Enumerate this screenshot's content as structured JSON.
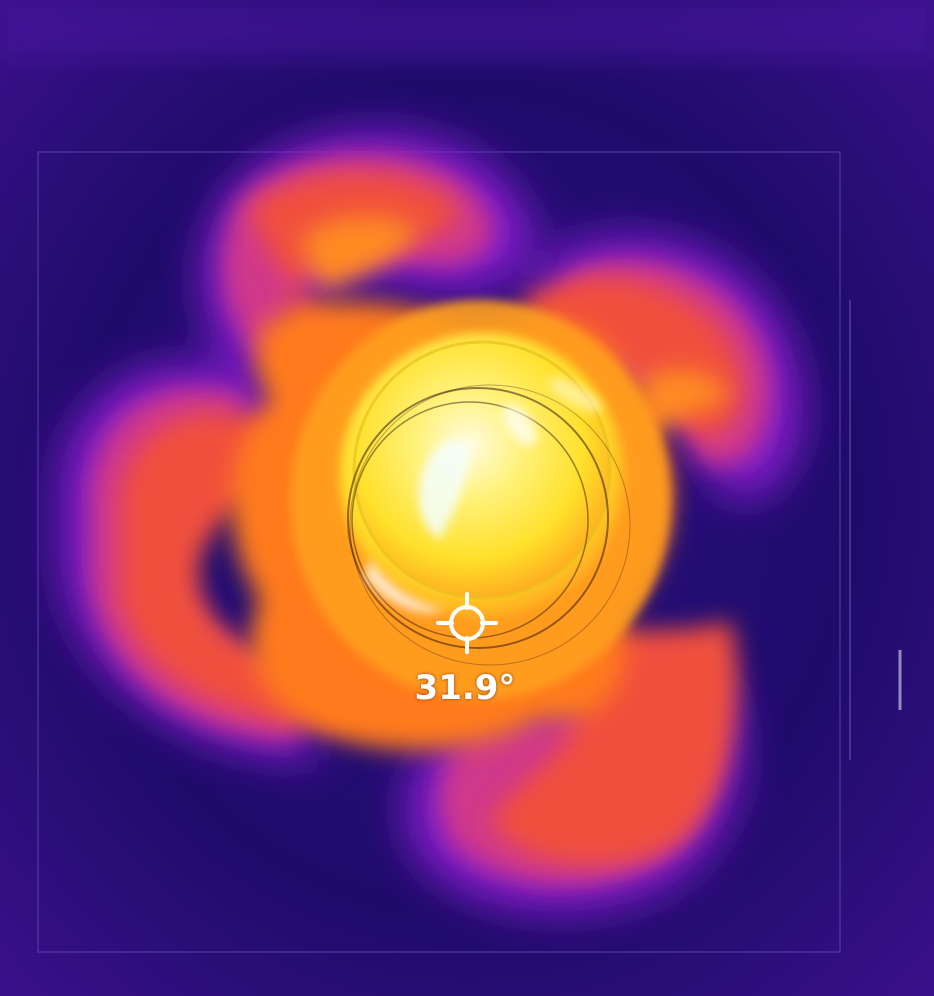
{
  "measurement": {
    "spot_temperature": "31.9°",
    "crosshair_icon": "crosshair-icon"
  },
  "palette": {
    "background": "#1c0c66",
    "purple": "#8a1fd0",
    "magenta": "#d0378a",
    "red_orange": "#f0503e",
    "orange": "#ff7a1a",
    "yellow": "#ffe23a",
    "white_hot": "#fffbd0"
  }
}
